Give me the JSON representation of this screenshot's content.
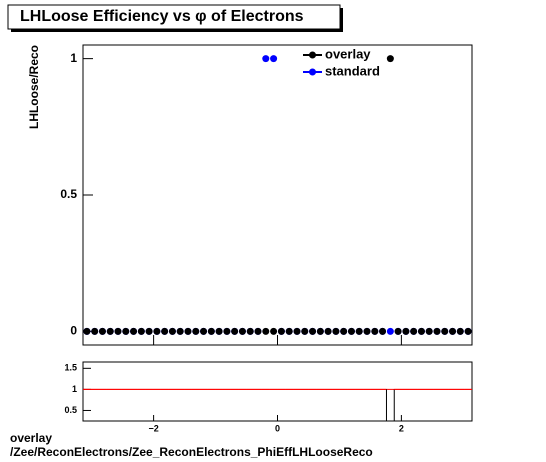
{
  "chart_data": {
    "type": "scatter",
    "title": "LHLoose Efficiency vs φ of Electrons",
    "y_label": "LHLoose/Reco",
    "x": [
      -3.077,
      -2.951,
      -2.826,
      -2.7,
      -2.575,
      -2.449,
      -2.324,
      -2.198,
      -2.073,
      -1.947,
      -1.822,
      -1.696,
      -1.571,
      -1.445,
      -1.319,
      -1.194,
      -1.068,
      -0.943,
      -0.817,
      -0.692,
      -0.566,
      -0.44,
      -0.315,
      -0.189,
      -0.063,
      0.063,
      0.189,
      0.315,
      0.44,
      0.566,
      0.692,
      0.817,
      0.943,
      1.068,
      1.194,
      1.319,
      1.445,
      1.571,
      1.696,
      1.822,
      1.947,
      2.073,
      2.198,
      2.324,
      2.449,
      2.575,
      2.7,
      2.826,
      2.951,
      3.077
    ],
    "series": [
      {
        "name": "overlay",
        "color": "#000000",
        "values": [
          0,
          0,
          0,
          0,
          0,
          0,
          0,
          0,
          0,
          0,
          0,
          0,
          0,
          0,
          0,
          0,
          0,
          0,
          0,
          0,
          0,
          0,
          0,
          0,
          0,
          0,
          0,
          0,
          0,
          0,
          0,
          0,
          0,
          0,
          0,
          0,
          0,
          0,
          0,
          1,
          0,
          0,
          0,
          0,
          0,
          0,
          0,
          0,
          0,
          0
        ]
      },
      {
        "name": "standard",
        "color": "#0000ff",
        "values": [
          0,
          0,
          0,
          0,
          0,
          0,
          0,
          0,
          0,
          0,
          0,
          0,
          0,
          0,
          0,
          0,
          0,
          0,
          0,
          0,
          0,
          0,
          0,
          1,
          1,
          0,
          0,
          0,
          0,
          0,
          0,
          0,
          0,
          0,
          0,
          0,
          0,
          0,
          0,
          0,
          0,
          0,
          0,
          0,
          0,
          0,
          0,
          0,
          0,
          0
        ]
      }
    ],
    "xlim": [
      -3.14,
      3.14
    ],
    "ylim": [
      -0.05,
      1.05
    ],
    "yticks": [
      0,
      0.5,
      1
    ],
    "ratio": {
      "values": [
        1,
        1,
        1,
        1,
        1,
        1,
        1,
        1,
        1,
        1,
        1,
        1,
        1,
        1,
        1,
        1,
        1,
        1,
        1,
        1,
        1,
        1,
        1,
        1,
        1,
        1,
        1,
        1,
        1,
        1,
        1,
        1,
        1,
        1,
        1,
        1,
        1,
        1,
        1,
        0,
        1,
        1,
        1,
        1,
        1,
        1,
        1,
        1,
        1,
        1
      ],
      "ylim": [
        0.25,
        1.65
      ],
      "yticks": [
        0.5,
        1,
        1.5
      ],
      "reference": 1,
      "color": "#ff0000",
      "xticks": [
        {
          "value": -2,
          "label": "−2"
        },
        0,
        2
      ]
    },
    "footer": [
      "overlay",
      "/Zee/ReconElectrons/Zee_ReconElectrons_PhiEffLHLooseReco"
    ]
  }
}
